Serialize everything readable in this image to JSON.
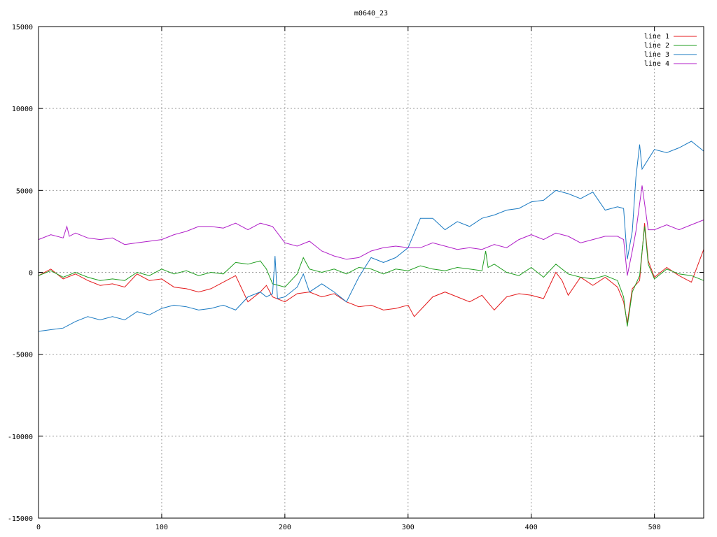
{
  "chart_data": {
    "type": "line",
    "title": "m0640_23",
    "xlim": [
      0,
      540
    ],
    "ylim": [
      -15000,
      15000
    ],
    "x_ticks": [
      0,
      100,
      200,
      300,
      400,
      500
    ],
    "y_ticks": [
      -15000,
      -10000,
      -5000,
      0,
      5000,
      10000,
      15000
    ],
    "grid": true,
    "legend_position": "top-right",
    "series": [
      {
        "name": "line 1",
        "color": "#e41a1c",
        "points": [
          [
            0,
            -200
          ],
          [
            10,
            200
          ],
          [
            20,
            -400
          ],
          [
            30,
            -100
          ],
          [
            40,
            -500
          ],
          [
            50,
            -800
          ],
          [
            60,
            -700
          ],
          [
            70,
            -900
          ],
          [
            80,
            -100
          ],
          [
            90,
            -500
          ],
          [
            100,
            -400
          ],
          [
            110,
            -900
          ],
          [
            120,
            -1000
          ],
          [
            130,
            -1200
          ],
          [
            140,
            -1000
          ],
          [
            150,
            -600
          ],
          [
            160,
            -200
          ],
          [
            165,
            -1000
          ],
          [
            170,
            -1800
          ],
          [
            180,
            -1200
          ],
          [
            185,
            -800
          ],
          [
            190,
            -1500
          ],
          [
            200,
            -1800
          ],
          [
            210,
            -1300
          ],
          [
            220,
            -1200
          ],
          [
            230,
            -1500
          ],
          [
            240,
            -1300
          ],
          [
            250,
            -1800
          ],
          [
            260,
            -2100
          ],
          [
            270,
            -2000
          ],
          [
            280,
            -2300
          ],
          [
            290,
            -2200
          ],
          [
            300,
            -2000
          ],
          [
            305,
            -2700
          ],
          [
            310,
            -2300
          ],
          [
            320,
            -1500
          ],
          [
            330,
            -1200
          ],
          [
            340,
            -1500
          ],
          [
            350,
            -1800
          ],
          [
            360,
            -1400
          ],
          [
            370,
            -2300
          ],
          [
            380,
            -1500
          ],
          [
            390,
            -1300
          ],
          [
            400,
            -1400
          ],
          [
            410,
            -1600
          ],
          [
            420,
            0
          ],
          [
            425,
            -500
          ],
          [
            430,
            -1400
          ],
          [
            440,
            -300
          ],
          [
            450,
            -800
          ],
          [
            460,
            -300
          ],
          [
            470,
            -900
          ],
          [
            475,
            -1800
          ],
          [
            478,
            -3100
          ],
          [
            482,
            -1000
          ],
          [
            488,
            -500
          ],
          [
            492,
            3000
          ],
          [
            495,
            700
          ],
          [
            500,
            -300
          ],
          [
            510,
            300
          ],
          [
            520,
            -200
          ],
          [
            530,
            -600
          ],
          [
            540,
            1400
          ]
        ]
      },
      {
        "name": "line 2",
        "color": "#1f9e1f",
        "points": [
          [
            0,
            -200
          ],
          [
            10,
            100
          ],
          [
            20,
            -300
          ],
          [
            30,
            0
          ],
          [
            40,
            -300
          ],
          [
            50,
            -500
          ],
          [
            60,
            -400
          ],
          [
            70,
            -500
          ],
          [
            80,
            0
          ],
          [
            90,
            -200
          ],
          [
            100,
            200
          ],
          [
            110,
            -100
          ],
          [
            120,
            100
          ],
          [
            130,
            -200
          ],
          [
            140,
            0
          ],
          [
            150,
            -100
          ],
          [
            160,
            600
          ],
          [
            170,
            500
          ],
          [
            180,
            700
          ],
          [
            185,
            200
          ],
          [
            190,
            -700
          ],
          [
            200,
            -900
          ],
          [
            210,
            -100
          ],
          [
            215,
            900
          ],
          [
            220,
            200
          ],
          [
            230,
            0
          ],
          [
            240,
            200
          ],
          [
            250,
            -100
          ],
          [
            260,
            300
          ],
          [
            270,
            200
          ],
          [
            280,
            -100
          ],
          [
            290,
            200
          ],
          [
            300,
            100
          ],
          [
            310,
            400
          ],
          [
            320,
            200
          ],
          [
            330,
            100
          ],
          [
            340,
            300
          ],
          [
            350,
            200
          ],
          [
            360,
            100
          ],
          [
            363,
            1300
          ],
          [
            365,
            300
          ],
          [
            370,
            500
          ],
          [
            380,
            0
          ],
          [
            390,
            -200
          ],
          [
            400,
            300
          ],
          [
            410,
            -300
          ],
          [
            420,
            500
          ],
          [
            430,
            -100
          ],
          [
            440,
            -300
          ],
          [
            450,
            -400
          ],
          [
            460,
            -200
          ],
          [
            470,
            -500
          ],
          [
            475,
            -1500
          ],
          [
            478,
            -3300
          ],
          [
            482,
            -1200
          ],
          [
            488,
            -200
          ],
          [
            492,
            2800
          ],
          [
            495,
            500
          ],
          [
            500,
            -400
          ],
          [
            510,
            200
          ],
          [
            520,
            -100
          ],
          [
            530,
            -200
          ],
          [
            540,
            -500
          ]
        ]
      },
      {
        "name": "line 3",
        "color": "#1a7ac2",
        "points": [
          [
            0,
            -3600
          ],
          [
            10,
            -3500
          ],
          [
            20,
            -3400
          ],
          [
            30,
            -3000
          ],
          [
            40,
            -2700
          ],
          [
            50,
            -2900
          ],
          [
            60,
            -2700
          ],
          [
            70,
            -2900
          ],
          [
            80,
            -2400
          ],
          [
            90,
            -2600
          ],
          [
            100,
            -2200
          ],
          [
            110,
            -2000
          ],
          [
            120,
            -2100
          ],
          [
            130,
            -2300
          ],
          [
            140,
            -2200
          ],
          [
            150,
            -2000
          ],
          [
            160,
            -2300
          ],
          [
            170,
            -1500
          ],
          [
            180,
            -1200
          ],
          [
            185,
            -1500
          ],
          [
            190,
            -1300
          ],
          [
            192,
            1000
          ],
          [
            194,
            -1600
          ],
          [
            200,
            -1500
          ],
          [
            210,
            -900
          ],
          [
            215,
            -100
          ],
          [
            220,
            -1200
          ],
          [
            230,
            -700
          ],
          [
            240,
            -1200
          ],
          [
            250,
            -1800
          ],
          [
            260,
            -300
          ],
          [
            270,
            900
          ],
          [
            280,
            600
          ],
          [
            290,
            900
          ],
          [
            300,
            1500
          ],
          [
            310,
            3300
          ],
          [
            320,
            3300
          ],
          [
            330,
            2600
          ],
          [
            340,
            3100
          ],
          [
            350,
            2800
          ],
          [
            360,
            3300
          ],
          [
            370,
            3500
          ],
          [
            380,
            3800
          ],
          [
            390,
            3900
          ],
          [
            400,
            4300
          ],
          [
            410,
            4400
          ],
          [
            420,
            5000
          ],
          [
            430,
            4800
          ],
          [
            440,
            4500
          ],
          [
            450,
            4900
          ],
          [
            460,
            3800
          ],
          [
            470,
            4000
          ],
          [
            475,
            3900
          ],
          [
            478,
            800
          ],
          [
            482,
            2500
          ],
          [
            485,
            5800
          ],
          [
            488,
            7800
          ],
          [
            490,
            6300
          ],
          [
            495,
            6900
          ],
          [
            500,
            7500
          ],
          [
            510,
            7300
          ],
          [
            520,
            7600
          ],
          [
            530,
            8000
          ],
          [
            540,
            7400
          ]
        ]
      },
      {
        "name": "line 4",
        "color": "#b01ec8",
        "points": [
          [
            0,
            2000
          ],
          [
            10,
            2300
          ],
          [
            20,
            2100
          ],
          [
            23,
            2800
          ],
          [
            25,
            2200
          ],
          [
            30,
            2400
          ],
          [
            40,
            2100
          ],
          [
            50,
            2000
          ],
          [
            60,
            2100
          ],
          [
            70,
            1700
          ],
          [
            80,
            1800
          ],
          [
            90,
            1900
          ],
          [
            100,
            2000
          ],
          [
            110,
            2300
          ],
          [
            120,
            2500
          ],
          [
            130,
            2800
          ],
          [
            140,
            2800
          ],
          [
            150,
            2700
          ],
          [
            160,
            3000
          ],
          [
            170,
            2600
          ],
          [
            180,
            3000
          ],
          [
            190,
            2800
          ],
          [
            200,
            1800
          ],
          [
            210,
            1600
          ],
          [
            220,
            1900
          ],
          [
            230,
            1300
          ],
          [
            240,
            1000
          ],
          [
            250,
            800
          ],
          [
            260,
            900
          ],
          [
            270,
            1300
          ],
          [
            280,
            1500
          ],
          [
            290,
            1600
          ],
          [
            300,
            1500
          ],
          [
            310,
            1500
          ],
          [
            320,
            1800
          ],
          [
            330,
            1600
          ],
          [
            340,
            1400
          ],
          [
            350,
            1500
          ],
          [
            360,
            1400
          ],
          [
            370,
            1700
          ],
          [
            380,
            1500
          ],
          [
            390,
            2000
          ],
          [
            400,
            2300
          ],
          [
            410,
            2000
          ],
          [
            420,
            2400
          ],
          [
            430,
            2200
          ],
          [
            440,
            1800
          ],
          [
            450,
            2000
          ],
          [
            460,
            2200
          ],
          [
            470,
            2200
          ],
          [
            475,
            2000
          ],
          [
            478,
            -200
          ],
          [
            482,
            1300
          ],
          [
            485,
            2500
          ],
          [
            490,
            5300
          ],
          [
            495,
            2600
          ],
          [
            500,
            2600
          ],
          [
            510,
            2900
          ],
          [
            520,
            2600
          ],
          [
            530,
            2900
          ],
          [
            540,
            3200
          ]
        ]
      }
    ]
  }
}
